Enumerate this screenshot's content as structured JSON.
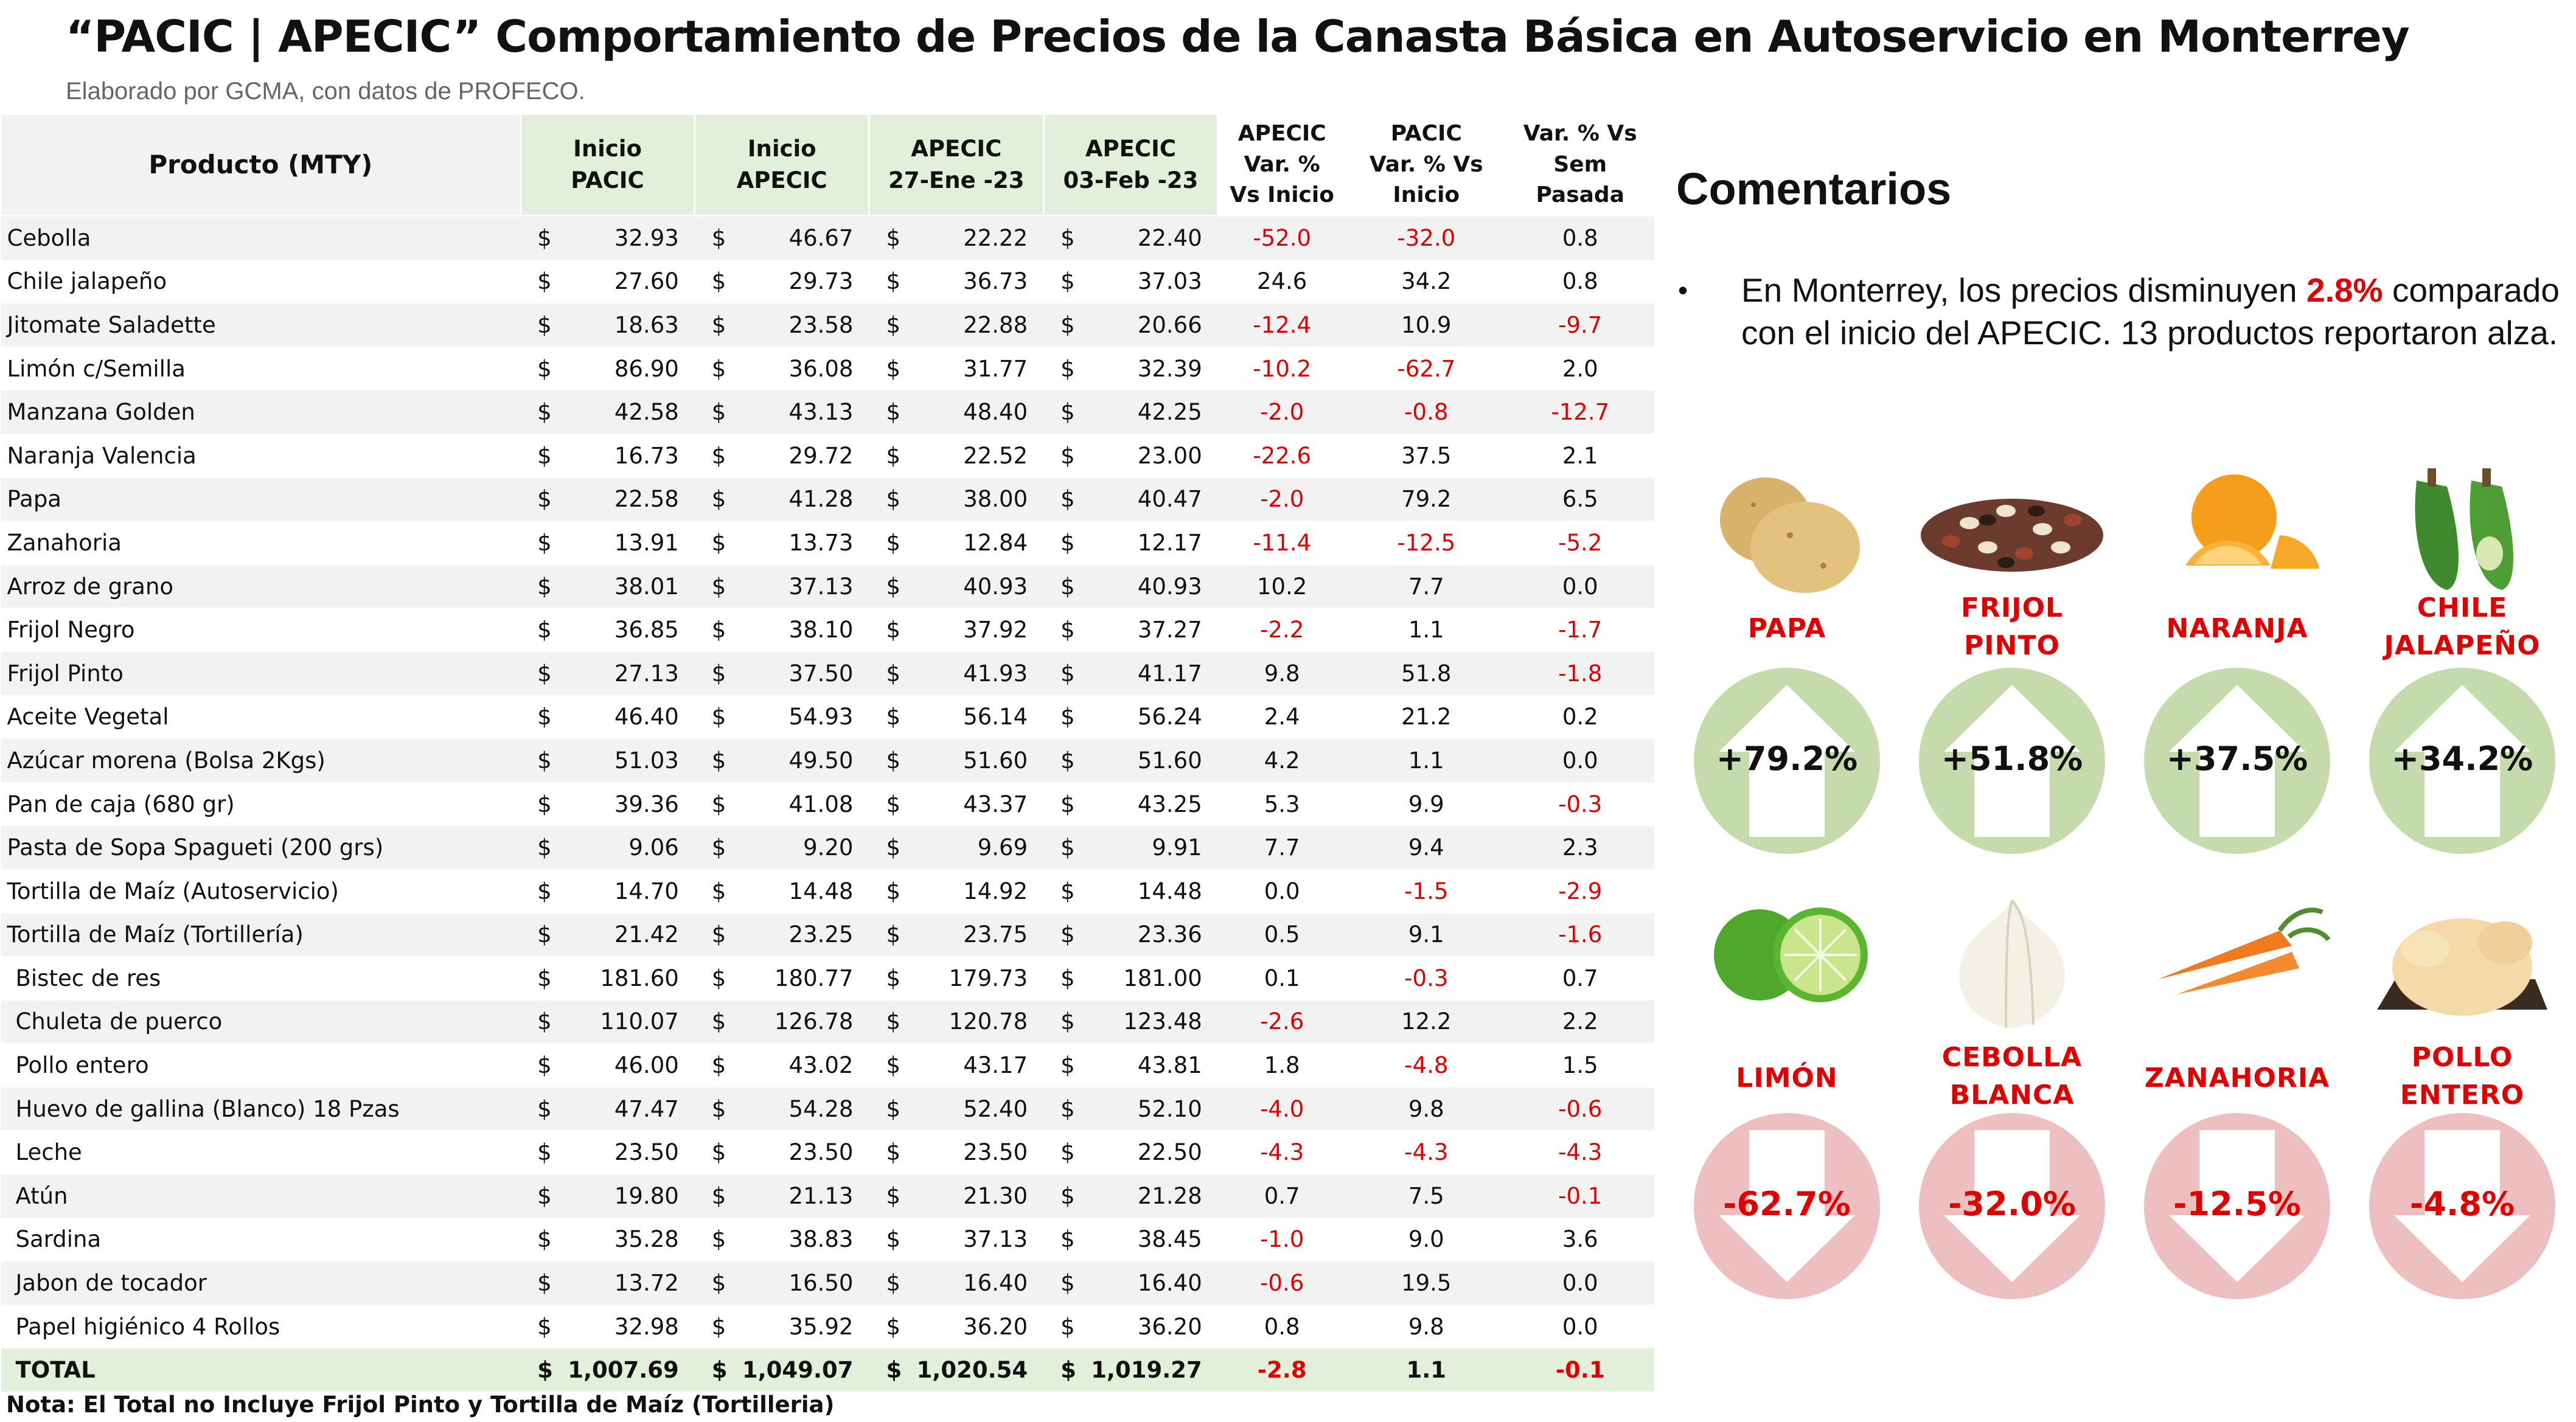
{
  "title": "“PACIC | APECIC” Comportamiento de Precios de la Canasta Básica en Autoservicio en Monterrey",
  "subtitle": "Elaborado por GCMA, con datos de PROFECO.",
  "table": {
    "headers": {
      "product": "Producto (MTY)",
      "inicio_pacic": [
        "Inicio",
        "PACIC"
      ],
      "inicio_apecic": [
        "Inicio",
        "APECIC"
      ],
      "apecic_27": [
        "APECIC",
        "27-Ene -23"
      ],
      "apecic_03": [
        "APECIC",
        "03-Feb -23"
      ],
      "var_apecic": [
        "APECIC",
        "Var. %",
        "Vs  Inicio"
      ],
      "var_pacic": [
        "PACIC",
        "Var. % Vs",
        "Inicio"
      ],
      "var_sem": [
        "Var. % Vs",
        "Sem Pasada"
      ]
    },
    "currency": "$",
    "rows": [
      {
        "name": "Cebolla",
        "indent": false,
        "v": [
          "32.93",
          "46.67",
          "22.22",
          "22.40"
        ],
        "var_apecic": "-52.0",
        "var_pacic": "-32.0",
        "var_sem": "0.8"
      },
      {
        "name": "Chile jalapeño",
        "indent": false,
        "v": [
          "27.60",
          "29.73",
          "36.73",
          "37.03"
        ],
        "var_apecic": "24.6",
        "var_pacic": "34.2",
        "var_sem": "0.8"
      },
      {
        "name": "Jitomate Saladette",
        "indent": false,
        "v": [
          "18.63",
          "23.58",
          "22.88",
          "20.66"
        ],
        "var_apecic": "-12.4",
        "var_pacic": "10.9",
        "var_sem": "-9.7"
      },
      {
        "name": "Limón c/Semilla",
        "indent": false,
        "v": [
          "86.90",
          "36.08",
          "31.77",
          "32.39"
        ],
        "var_apecic": "-10.2",
        "var_pacic": "-62.7",
        "var_sem": "2.0"
      },
      {
        "name": "Manzana Golden",
        "indent": false,
        "v": [
          "42.58",
          "43.13",
          "48.40",
          "42.25"
        ],
        "var_apecic": "-2.0",
        "var_pacic": "-0.8",
        "var_sem": "-12.7"
      },
      {
        "name": "Naranja Valencia",
        "indent": false,
        "v": [
          "16.73",
          "29.72",
          "22.52",
          "23.00"
        ],
        "var_apecic": "-22.6",
        "var_pacic": "37.5",
        "var_sem": "2.1"
      },
      {
        "name": "Papa",
        "indent": false,
        "v": [
          "22.58",
          "41.28",
          "38.00",
          "40.47"
        ],
        "var_apecic": "-2.0",
        "var_pacic": "79.2",
        "var_sem": "6.5"
      },
      {
        "name": "Zanahoria",
        "indent": false,
        "v": [
          "13.91",
          "13.73",
          "12.84",
          "12.17"
        ],
        "var_apecic": "-11.4",
        "var_pacic": "-12.5",
        "var_sem": "-5.2"
      },
      {
        "name": "Arroz de grano",
        "indent": false,
        "v": [
          "38.01",
          "37.13",
          "40.93",
          "40.93"
        ],
        "var_apecic": "10.2",
        "var_pacic": "7.7",
        "var_sem": "0.0"
      },
      {
        "name": "Frijol Negro",
        "indent": false,
        "v": [
          "36.85",
          "38.10",
          "37.92",
          "37.27"
        ],
        "var_apecic": "-2.2",
        "var_pacic": "1.1",
        "var_sem": "-1.7"
      },
      {
        "name": "Frijol Pinto",
        "indent": false,
        "v": [
          "27.13",
          "37.50",
          "41.93",
          "41.17"
        ],
        "var_apecic": "9.8",
        "var_pacic": "51.8",
        "var_sem": "-1.8"
      },
      {
        "name": "Aceite Vegetal",
        "indent": false,
        "v": [
          "46.40",
          "54.93",
          "56.14",
          "56.24"
        ],
        "var_apecic": "2.4",
        "var_pacic": "21.2",
        "var_sem": "0.2"
      },
      {
        "name": "Azúcar morena (Bolsa 2Kgs)",
        "indent": false,
        "v": [
          "51.03",
          "49.50",
          "51.60",
          "51.60"
        ],
        "var_apecic": "4.2",
        "var_pacic": "1.1",
        "var_sem": "0.0"
      },
      {
        "name": "Pan de caja (680 gr)",
        "indent": false,
        "v": [
          "39.36",
          "41.08",
          "43.37",
          "43.25"
        ],
        "var_apecic": "5.3",
        "var_pacic": "9.9",
        "var_sem": "-0.3"
      },
      {
        "name": "Pasta de Sopa Spagueti (200 grs)",
        "indent": false,
        "v": [
          "9.06",
          "9.20",
          "9.69",
          "9.91"
        ],
        "var_apecic": "7.7",
        "var_pacic": "9.4",
        "var_sem": "2.3"
      },
      {
        "name": "Tortilla de Maíz (Autoservicio)",
        "indent": false,
        "v": [
          "14.70",
          "14.48",
          "14.92",
          "14.48"
        ],
        "var_apecic": "0.0",
        "var_pacic": "-1.5",
        "var_sem": "-2.9"
      },
      {
        "name": "Tortilla de Maíz (Tortillería)",
        "indent": false,
        "v": [
          "21.42",
          "23.25",
          "23.75",
          "23.36"
        ],
        "var_apecic": "0.5",
        "var_pacic": "9.1",
        "var_sem": "-1.6"
      },
      {
        "name": "Bistec de res",
        "indent": true,
        "v": [
          "181.60",
          "180.77",
          "179.73",
          "181.00"
        ],
        "var_apecic": "0.1",
        "var_pacic": "-0.3",
        "var_sem": "0.7"
      },
      {
        "name": "Chuleta de puerco",
        "indent": true,
        "v": [
          "110.07",
          "126.78",
          "120.78",
          "123.48"
        ],
        "var_apecic": "-2.6",
        "var_pacic": "12.2",
        "var_sem": "2.2"
      },
      {
        "name": "Pollo entero",
        "indent": true,
        "v": [
          "46.00",
          "43.02",
          "43.17",
          "43.81"
        ],
        "var_apecic": "1.8",
        "var_pacic": "-4.8",
        "var_sem": "1.5"
      },
      {
        "name": "Huevo de gallina (Blanco) 18 Pzas",
        "indent": true,
        "v": [
          "47.47",
          "54.28",
          "52.40",
          "52.10"
        ],
        "var_apecic": "-4.0",
        "var_pacic": "9.8",
        "var_sem": "-0.6"
      },
      {
        "name": "Leche",
        "indent": true,
        "v": [
          "23.50",
          "23.50",
          "23.50",
          "22.50"
        ],
        "var_apecic": "-4.3",
        "var_pacic": "-4.3",
        "var_sem": "-4.3"
      },
      {
        "name": "Atún",
        "indent": true,
        "v": [
          "19.80",
          "21.13",
          "21.30",
          "21.28"
        ],
        "var_apecic": "0.7",
        "var_pacic": "7.5",
        "var_sem": "-0.1"
      },
      {
        "name": "Sardina",
        "indent": true,
        "v": [
          "35.28",
          "38.83",
          "37.13",
          "38.45"
        ],
        "var_apecic": "-1.0",
        "var_pacic": "9.0",
        "var_sem": "3.6"
      },
      {
        "name": "Jabon de tocador",
        "indent": true,
        "v": [
          "13.72",
          "16.50",
          "16.40",
          "16.40"
        ],
        "var_apecic": "-0.6",
        "var_pacic": "19.5",
        "var_sem": "0.0"
      },
      {
        "name": "Papel higiénico 4 Rollos",
        "indent": true,
        "v": [
          "32.98",
          "35.92",
          "36.20",
          "36.20"
        ],
        "var_apecic": "0.8",
        "var_pacic": "9.8",
        "var_sem": "0.0"
      }
    ],
    "total": {
      "name": "TOTAL",
      "v": [
        "1,007.69",
        "1,049.07",
        "1,020.54",
        "1,019.27"
      ],
      "var_apecic": "-2.8",
      "var_pacic": "1.1",
      "var_sem": "-0.1"
    }
  },
  "note": "Nota: El Total no Incluye Frijol Pinto y Tortilla de Maíz (Tortilleria)",
  "comments": {
    "title": "Comentarios",
    "bullet": "•",
    "text_before": "En Monterrey, los precios disminuyen ",
    "highlight": "2.8%",
    "text_after": " comparado con el inicio del APECIC. 13 productos reportaron alza."
  },
  "cards": {
    "up": [
      {
        "label": [
          "PAPA"
        ],
        "pct": "+79.2%",
        "icon": "potato-icon"
      },
      {
        "label": [
          "FRIJOL",
          "PINTO"
        ],
        "pct": "+51.8%",
        "icon": "beans-icon"
      },
      {
        "label": [
          "NARANJA"
        ],
        "pct": "+37.5%",
        "icon": "orange-icon"
      },
      {
        "label": [
          "CHILE",
          "JALAPEÑO"
        ],
        "pct": "+34.2%",
        "icon": "chili-icon"
      }
    ],
    "down": [
      {
        "label": [
          "LIMÓN"
        ],
        "pct": "-62.7%",
        "icon": "lime-icon"
      },
      {
        "label": [
          "CEBOLLA",
          "BLANCA"
        ],
        "pct": "-32.0%",
        "icon": "onion-icon"
      },
      {
        "label": [
          "ZANAHORIA"
        ],
        "pct": "-12.5%",
        "icon": "carrot-icon"
      },
      {
        "label": [
          "POLLO",
          "ENTERO"
        ],
        "pct": "-4.8%",
        "icon": "chicken-icon"
      }
    ]
  },
  "colors": {
    "negative": "#e00000",
    "header_green": "#e2efda",
    "up_circle": "#c6dbab",
    "down_circle": "#eebfc1"
  }
}
